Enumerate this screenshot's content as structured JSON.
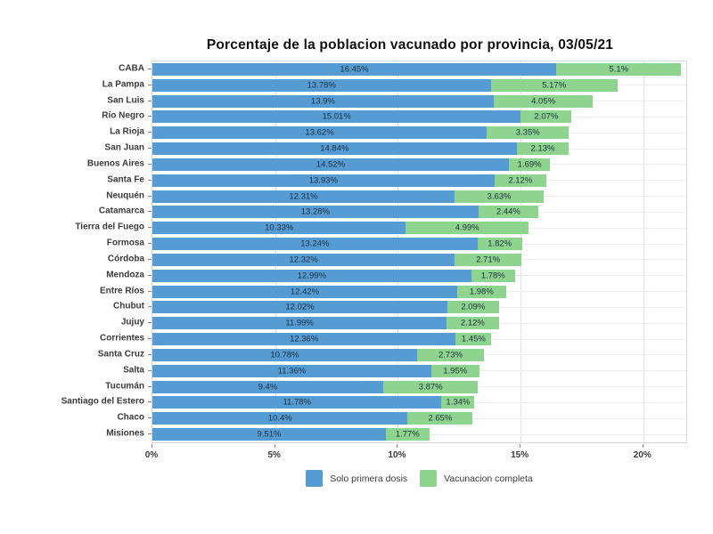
{
  "title": "Porcentaje de la poblacion vacunado por provincia, 03/05/21",
  "colors": {
    "first_dose": "#559bd4",
    "complete": "#8ed48e",
    "bar_label": "#1e2f3e",
    "grid": "#e4e4e4",
    "axis_text": "#3a3a3a"
  },
  "x_axis": {
    "tick_labels": [
      "0%",
      "5%",
      "10%",
      "15%",
      "20%"
    ],
    "tick_values": [
      0,
      5,
      10,
      15,
      20
    ],
    "max": 21.75
  },
  "legend": {
    "items": [
      {
        "label": "Solo primera dosis",
        "color": "#559bd4"
      },
      {
        "label": "Vacunacion completa",
        "color": "#8ed48e"
      }
    ]
  },
  "chart_data": {
    "type": "bar",
    "orientation": "horizontal-stacked",
    "title": "Porcentaje de la poblacion vacunado por provincia, 03/05/21",
    "xlabel": "",
    "ylabel": "",
    "xlim": [
      0,
      21.75
    ],
    "grid": true,
    "legend_position": "bottom-center",
    "categories": [
      "CABA",
      "La Pampa",
      "San Luis",
      "Río Negro",
      "La Rioja",
      "San Juan",
      "Buenos Aires",
      "Santa Fe",
      "Neuquén",
      "Catamarca",
      "Tierra del Fuego",
      "Formosa",
      "Córdoba",
      "Mendoza",
      "Entre Ríos",
      "Chubut",
      "Jujuy",
      "Corrientes",
      "Santa Cruz",
      "Salta",
      "Tucumán",
      "Santiago del Estero",
      "Chaco",
      "Misiones"
    ],
    "series": [
      {
        "name": "Solo primera dosis",
        "color": "#559bd4",
        "values": [
          16.45,
          13.78,
          13.9,
          15.01,
          13.62,
          14.84,
          14.52,
          13.93,
          12.31,
          13.28,
          10.33,
          13.24,
          12.32,
          12.99,
          12.42,
          12.02,
          11.99,
          12.36,
          10.78,
          11.36,
          9.4,
          11.78,
          10.4,
          9.51
        ]
      },
      {
        "name": "Vacunacion completa",
        "color": "#8ed48e",
        "values": [
          5.1,
          5.17,
          4.05,
          2.07,
          3.35,
          2.13,
          1.69,
          2.12,
          3.63,
          2.44,
          4.99,
          1.82,
          2.71,
          1.78,
          1.98,
          2.09,
          2.12,
          1.45,
          2.73,
          1.95,
          3.87,
          1.34,
          2.65,
          1.77
        ]
      }
    ]
  }
}
